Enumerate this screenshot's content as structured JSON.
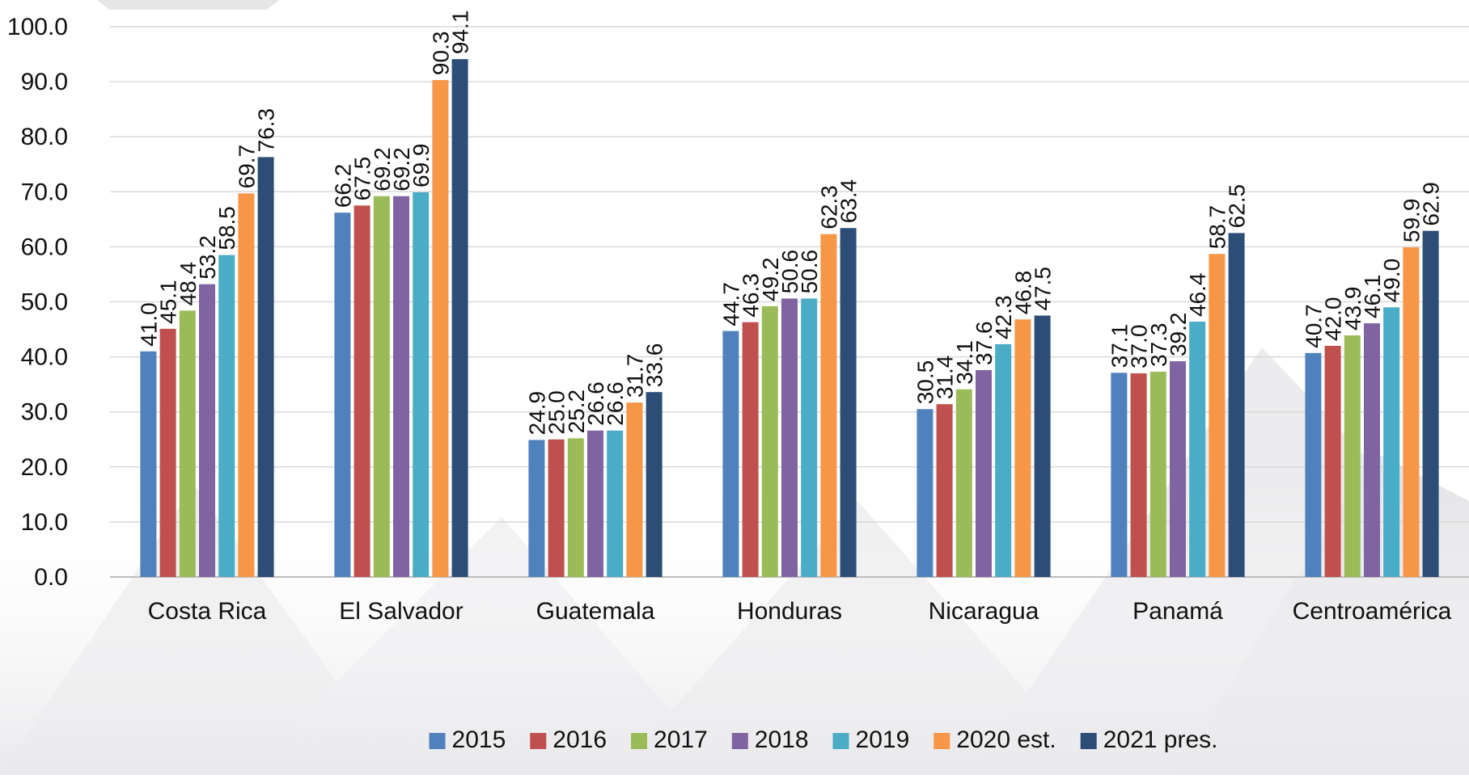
{
  "chart_data": {
    "type": "bar",
    "categories": [
      "Costa Rica",
      "El Salvador",
      "Guatemala",
      "Honduras",
      "Nicaragua",
      "Panamá",
      "Centroamérica"
    ],
    "series": [
      {
        "name": "2015",
        "color": "#4f81bd",
        "values": [
          41.0,
          66.2,
          24.9,
          44.7,
          30.5,
          37.1,
          40.7
        ]
      },
      {
        "name": "2016",
        "color": "#c0504d",
        "values": [
          45.1,
          67.5,
          25.0,
          46.3,
          31.4,
          37.0,
          42.0
        ]
      },
      {
        "name": "2017",
        "color": "#9bbb59",
        "values": [
          48.4,
          69.2,
          25.2,
          49.2,
          34.1,
          37.3,
          43.9
        ]
      },
      {
        "name": "2018",
        "color": "#8064a2",
        "values": [
          53.2,
          69.2,
          26.6,
          50.6,
          37.6,
          39.2,
          46.1
        ]
      },
      {
        "name": "2019",
        "color": "#4bacc6",
        "values": [
          58.5,
          69.9,
          26.6,
          50.6,
          42.3,
          46.4,
          49.0
        ]
      },
      {
        "name": "2020 est.",
        "color": "#f79646",
        "values": [
          69.7,
          90.3,
          31.7,
          62.3,
          46.8,
          58.7,
          59.9
        ]
      },
      {
        "name": "2021 pres.",
        "color": "#2c4d75",
        "values": [
          76.3,
          94.1,
          33.6,
          63.4,
          47.5,
          62.5,
          62.9
        ]
      }
    ],
    "y_ticks": [
      "0.0",
      "10.0",
      "20.0",
      "30.0",
      "40.0",
      "50.0",
      "60.0",
      "70.0",
      "80.0",
      "90.0",
      "100.0"
    ],
    "ylim": [
      0,
      100
    ],
    "grid": true,
    "legend": "bottom",
    "data_labels": true
  }
}
